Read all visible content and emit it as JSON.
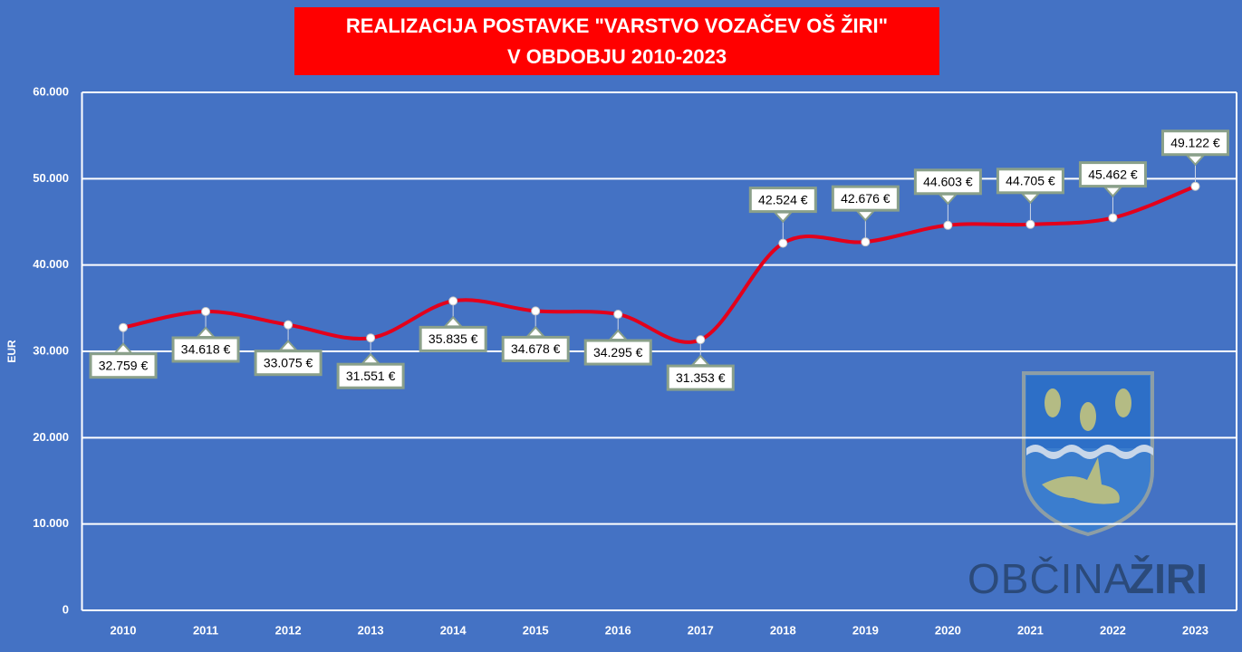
{
  "chart_data": {
    "type": "line",
    "title": [
      "REALIZACIJA  POSTAVKE \"VARSTVO VOZAČEV OŠ ŽIRI\"",
      "V OBDOBJU 2010-2023"
    ],
    "y_label": "EUR",
    "categories": [
      "2010",
      "2011",
      "2012",
      "2013",
      "2014",
      "2015",
      "2016",
      "2017",
      "2018",
      "2019",
      "2020",
      "2021",
      "2022",
      "2023"
    ],
    "values": [
      32759,
      34618,
      33075,
      31551,
      35835,
      34678,
      34295,
      31353,
      42524,
      42676,
      44603,
      44705,
      45462,
      49122
    ],
    "value_labels": [
      "32.759 €",
      "34.618 €",
      "33.075 €",
      "31.551 €",
      "35.835 €",
      "34.678 €",
      "34.295 €",
      "31.353 €",
      "42.524 €",
      "42.676 €",
      "44.603 €",
      "44.705 €",
      "45.462 €",
      "49.122 €"
    ],
    "color": "#e3001b",
    "ylim": [
      0,
      60000
    ],
    "yticks": [
      0,
      {
        "value": 10000,
        "label": "10.000"
      },
      {
        "value": 20000,
        "label": "20.000"
      },
      {
        "value": 30000,
        "label": "30.000"
      },
      {
        "value": 40000,
        "label": "40.000"
      },
      {
        "value": 50000,
        "label": "50.000"
      },
      {
        "value": 60000,
        "label": "60.000"
      }
    ],
    "grid": true,
    "annotations": [
      "OBČINA",
      "ŽIRI"
    ]
  }
}
